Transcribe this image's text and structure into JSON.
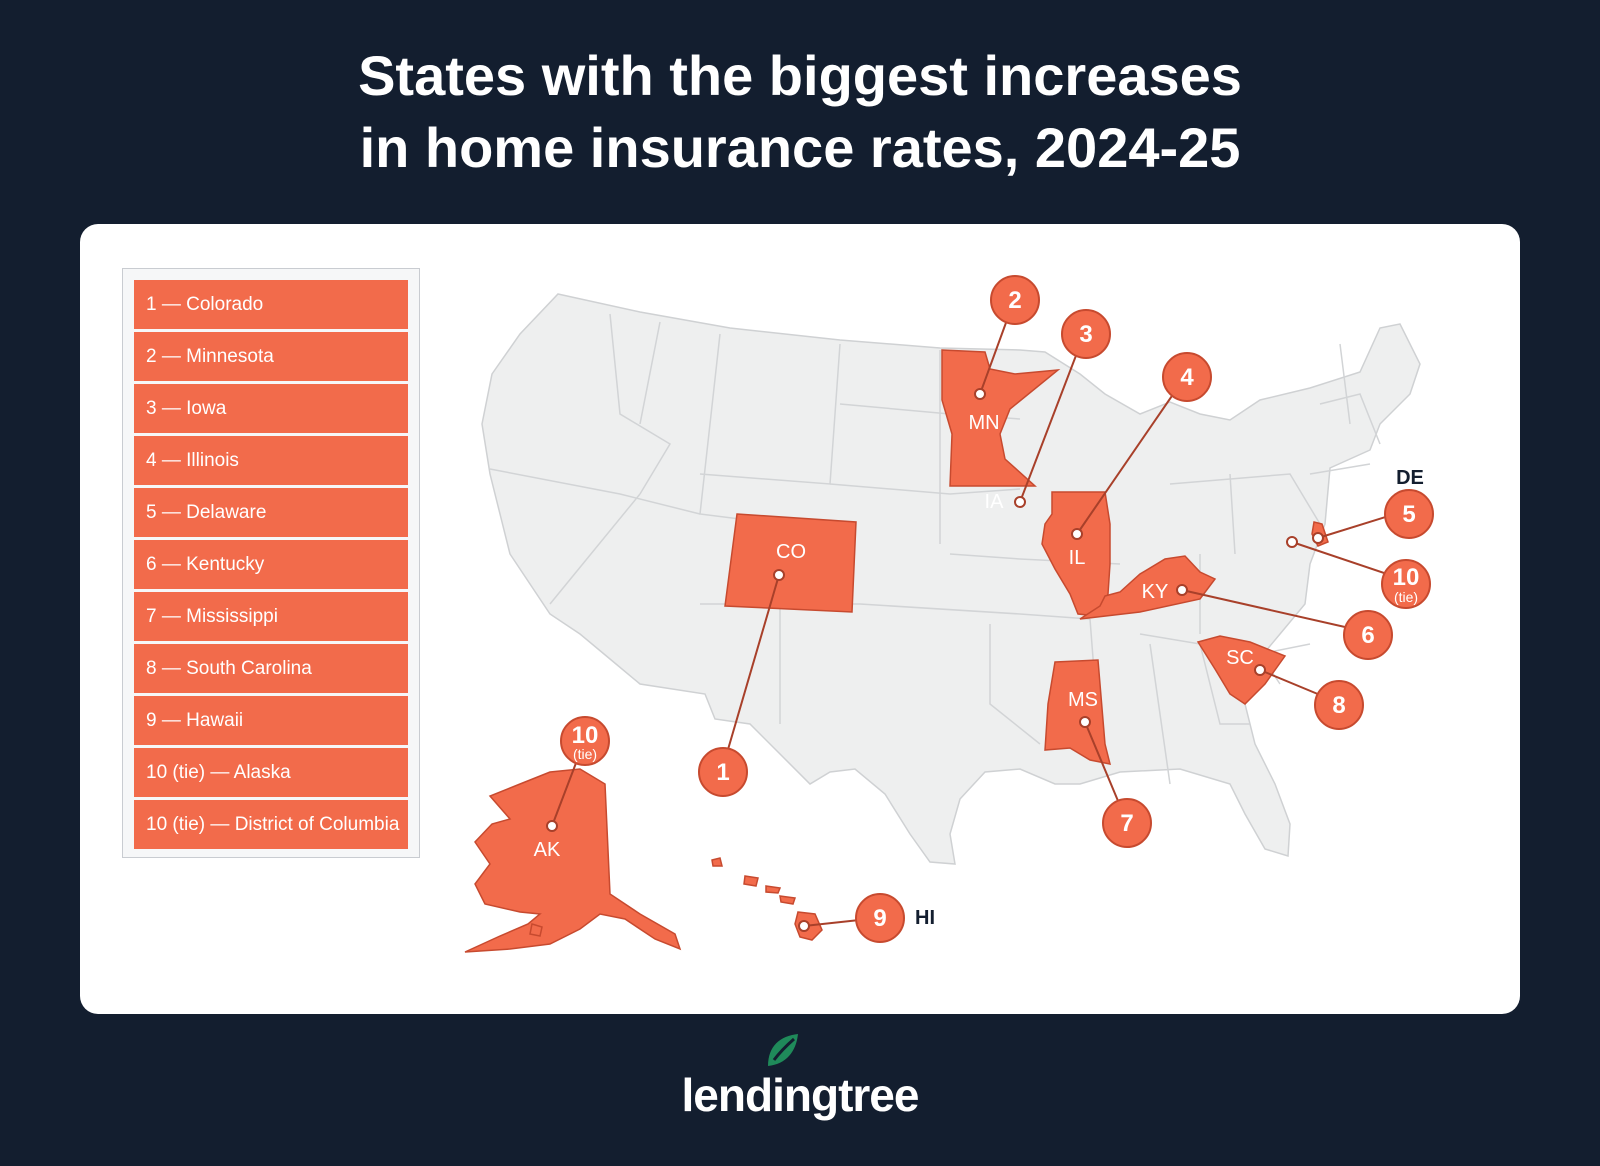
{
  "title": {
    "line1": "States with the biggest increases",
    "line2": "in home insurance rates, 2024-25"
  },
  "legend": [
    "1 — Colorado",
    "2 — Minnesota",
    "3 — Iowa",
    "4 — Illinois",
    "5 — Delaware",
    "6 — Kentucky",
    "7 — Mississippi",
    "8 — South Carolina",
    "9 — Hawaii",
    "10 (tie) — Alaska",
    "10 (tie) — District of Columbia"
  ],
  "states": {
    "co": "CO",
    "mn": "MN",
    "ia": "IA",
    "il": "IL",
    "ky": "KY",
    "sc": "SC",
    "ms": "MS",
    "ak": "AK",
    "hi": "HI",
    "de": "DE"
  },
  "badges": {
    "b1": "1",
    "b2": "2",
    "b3": "3",
    "b4": "4",
    "b5": "5",
    "b6": "6",
    "b7": "7",
    "b8": "8",
    "b9": "9",
    "b10dc": "10",
    "b10ak": "10",
    "tie": "(tie)"
  },
  "brand": {
    "name": "lendingtree"
  },
  "colors": {
    "background": "#131e2f",
    "highlight": "#f26b4b",
    "base_state": "#eeefef",
    "brand_leaf": "#1f8a5a"
  }
}
